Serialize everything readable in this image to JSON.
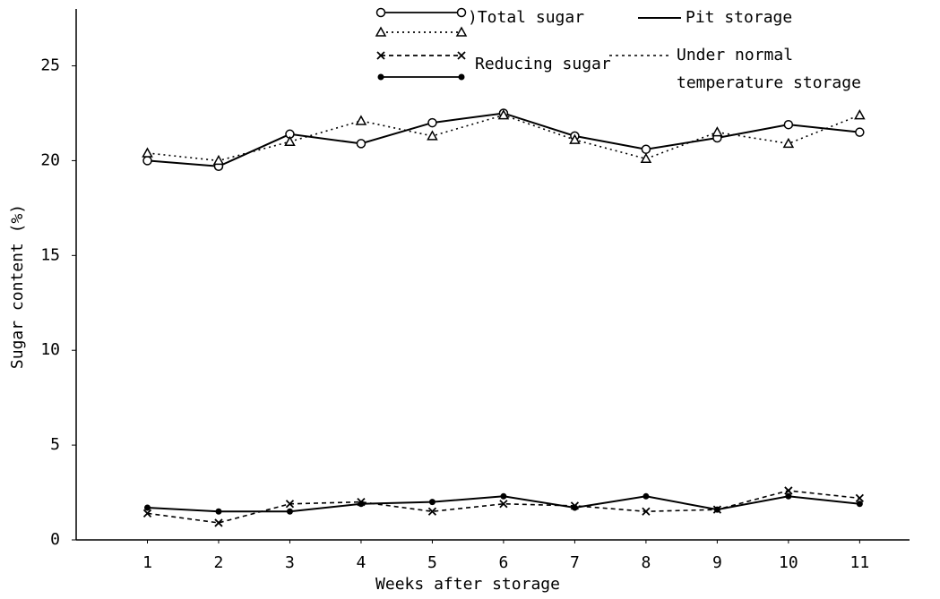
{
  "chart_data": {
    "type": "line",
    "xlabel": "Weeks after storage",
    "ylabel": "Sugar content (%)",
    "x": [
      1,
      2,
      3,
      4,
      5,
      6,
      7,
      8,
      9,
      10,
      11
    ],
    "xlim": [
      0,
      11.7
    ],
    "xticks": [
      1,
      2,
      3,
      4,
      5,
      6,
      7,
      8,
      9,
      10,
      11
    ],
    "ylim": [
      0,
      28
    ],
    "yticks": [
      0,
      5,
      10,
      15,
      20,
      25
    ],
    "grid": false,
    "series": [
      {
        "color": "#000000",
        "dash": "solid",
        "marker": "circle",
        "values": [
          20.0,
          19.7,
          21.4,
          20.9,
          22.0,
          22.5,
          21.3,
          20.6,
          21.2,
          21.9,
          21.5
        ]
      },
      {
        "color": "#000000",
        "dash": "dotted",
        "marker": "triangle",
        "values": [
          20.4,
          20.0,
          21.0,
          22.1,
          21.3,
          22.4,
          21.1,
          20.1,
          21.5,
          20.9,
          22.4
        ]
      },
      {
        "color": "#000000",
        "dash": "solid",
        "marker": "dot",
        "values": [
          1.7,
          1.5,
          1.5,
          1.9,
          2.0,
          2.3,
          1.7,
          2.3,
          1.6,
          2.3,
          1.9
        ]
      },
      {
        "color": "#000000",
        "dash": "dashed",
        "marker": "x",
        "values": [
          1.4,
          0.9,
          1.9,
          2.0,
          1.5,
          1.9,
          1.8,
          1.5,
          1.6,
          2.6,
          2.2
        ]
      }
    ],
    "legend": {
      "total": ")Total sugar",
      "reducing": "Reducing sugar",
      "pit": "Pit storage",
      "normal": [
        "Under normal",
        "temperature storage"
      ]
    }
  }
}
